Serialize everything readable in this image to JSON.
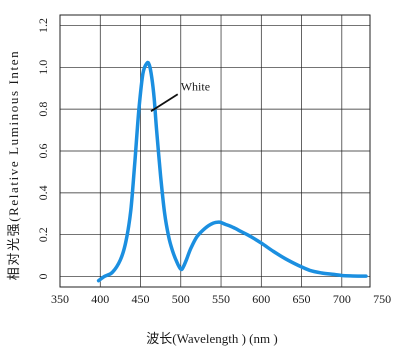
{
  "chart_data": {
    "type": "line",
    "title": "",
    "xlabel": "波长(Wavelength ) (nm )",
    "ylabel": "相对光强(Relative Luminous Inten",
    "xlim": [
      350,
      735
    ],
    "ylim": [
      -0.05,
      1.25
    ],
    "x_ticks": [
      350,
      400,
      450,
      500,
      550,
      600,
      650,
      700,
      750
    ],
    "x_tick_labels": [
      "350",
      "400",
      "450",
      "500",
      "550",
      "600",
      "650",
      "700",
      "750"
    ],
    "y_ticks": [
      0,
      0.2,
      0.4,
      0.6,
      0.8,
      1.0,
      1.2
    ],
    "y_tick_labels": [
      "0",
      "0.2",
      "0.4",
      "0.6",
      "0.8",
      "1.0",
      "1.2"
    ],
    "grid": true,
    "line_color": "#1b8fe0",
    "series": [
      {
        "name": "White",
        "x": [
          398,
          405,
          415,
          425,
          432,
          438,
          443,
          448,
          453,
          458,
          461,
          464,
          467,
          470,
          475,
          480,
          485,
          490,
          495,
          500,
          503,
          507,
          512,
          520,
          530,
          540,
          548,
          555,
          565,
          575,
          585,
          600,
          615,
          630,
          645,
          660,
          675,
          690,
          700,
          710,
          720,
          730
        ],
        "y": [
          -0.02,
          0.0,
          0.02,
          0.08,
          0.17,
          0.32,
          0.55,
          0.8,
          0.97,
          1.02,
          1.01,
          0.95,
          0.85,
          0.7,
          0.48,
          0.3,
          0.19,
          0.12,
          0.07,
          0.035,
          0.045,
          0.08,
          0.13,
          0.19,
          0.23,
          0.255,
          0.26,
          0.25,
          0.235,
          0.215,
          0.195,
          0.16,
          0.12,
          0.085,
          0.055,
          0.03,
          0.017,
          0.01,
          0.005,
          0.003,
          0.002,
          0.002
        ]
      }
    ],
    "annotations": [
      {
        "text": "White",
        "x": 490,
        "y": 0.895,
        "arrow_to": {
          "x": 463,
          "y": 0.79
        }
      }
    ]
  }
}
